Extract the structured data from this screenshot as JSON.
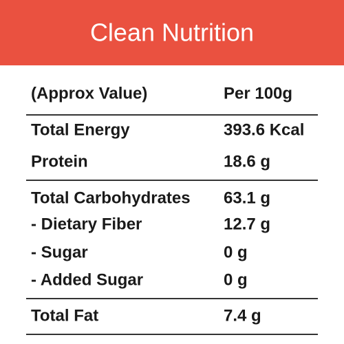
{
  "header": {
    "title": "Clean Nutrition"
  },
  "table": {
    "columns": [
      "(Approx Value)",
      "Per 100g"
    ],
    "groups": [
      [
        [
          "Total Energy",
          "393.6 Kcal"
        ],
        [
          "Protein",
          "18.6 g"
        ]
      ],
      [
        [
          "Total Carbohydrates",
          "63.1 g"
        ],
        [
          "- Dietary Fiber",
          "12.7 g"
        ],
        [
          "- Sugar",
          "0 g"
        ],
        [
          "- Added Sugar",
          "0 g"
        ]
      ],
      [
        [
          "Total Fat",
          "7.4 g"
        ]
      ]
    ]
  }
}
